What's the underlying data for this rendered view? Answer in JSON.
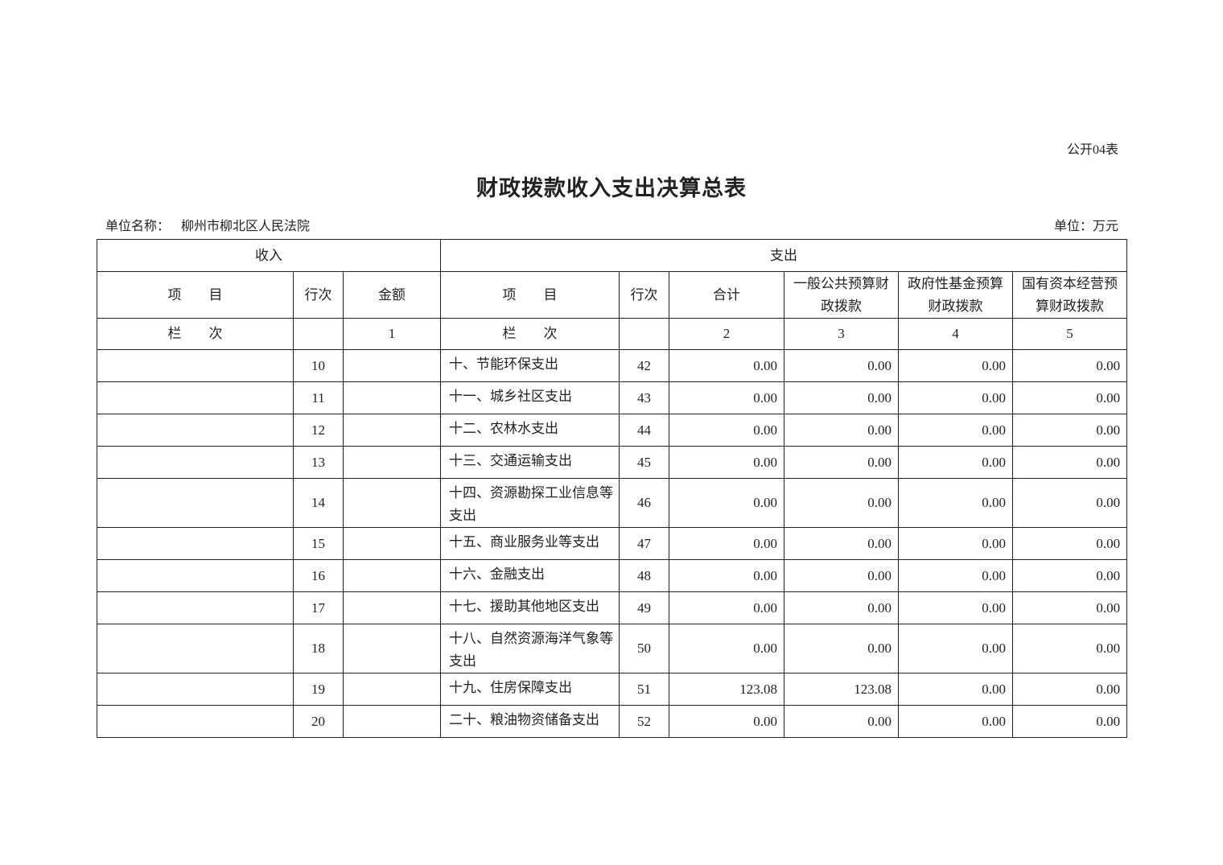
{
  "form_no": "公开04表",
  "title": "财政拨款收入支出决算总表",
  "unit_name_label": "单位名称：",
  "unit_name": "柳州市柳北区人民法院",
  "unit": "单位：万元",
  "header": {
    "income": "收入",
    "expense": "支出",
    "item": "项　　目",
    "row_no": "行次",
    "amount": "金额",
    "item2": "项　　目",
    "row_no2": "行次",
    "total": "合计",
    "general": "一般公共预算财政拨款",
    "gov_fund": "政府性基金预算财政拨款",
    "state_capital": "国有资本经营预算财政拨款",
    "col_label": "栏　　次",
    "col1": "1",
    "col_label2": "栏　　次",
    "col2": "2",
    "col3": "3",
    "col4": "4",
    "col5": "5"
  },
  "rows": [
    {
      "in_item": "",
      "in_no": "10",
      "in_amt": "",
      "item": "十、节能环保支出",
      "no": "42",
      "total": "0.00",
      "general": "0.00",
      "gov_fund": "0.00",
      "state_capital": "0.00"
    },
    {
      "in_item": "",
      "in_no": "11",
      "in_amt": "",
      "item": "十一、城乡社区支出",
      "no": "43",
      "total": "0.00",
      "general": "0.00",
      "gov_fund": "0.00",
      "state_capital": "0.00"
    },
    {
      "in_item": "",
      "in_no": "12",
      "in_amt": "",
      "item": "十二、农林水支出",
      "no": "44",
      "total": "0.00",
      "general": "0.00",
      "gov_fund": "0.00",
      "state_capital": "0.00"
    },
    {
      "in_item": "",
      "in_no": "13",
      "in_amt": "",
      "item": "十三、交通运输支出",
      "no": "45",
      "total": "0.00",
      "general": "0.00",
      "gov_fund": "0.00",
      "state_capital": "0.00"
    },
    {
      "in_item": "",
      "in_no": "14",
      "in_amt": "",
      "item": "十四、资源勘探工业信息等支出",
      "no": "46",
      "total": "0.00",
      "general": "0.00",
      "gov_fund": "0.00",
      "state_capital": "0.00"
    },
    {
      "in_item": "",
      "in_no": "15",
      "in_amt": "",
      "item": "十五、商业服务业等支出",
      "no": "47",
      "total": "0.00",
      "general": "0.00",
      "gov_fund": "0.00",
      "state_capital": "0.00"
    },
    {
      "in_item": "",
      "in_no": "16",
      "in_amt": "",
      "item": "十六、金融支出",
      "no": "48",
      "total": "0.00",
      "general": "0.00",
      "gov_fund": "0.00",
      "state_capital": "0.00"
    },
    {
      "in_item": "",
      "in_no": "17",
      "in_amt": "",
      "item": "十七、援助其他地区支出",
      "no": "49",
      "total": "0.00",
      "general": "0.00",
      "gov_fund": "0.00",
      "state_capital": "0.00"
    },
    {
      "in_item": "",
      "in_no": "18",
      "in_amt": "",
      "item": "十八、自然资源海洋气象等支出",
      "no": "50",
      "total": "0.00",
      "general": "0.00",
      "gov_fund": "0.00",
      "state_capital": "0.00"
    },
    {
      "in_item": "",
      "in_no": "19",
      "in_amt": "",
      "item": "十九、住房保障支出",
      "no": "51",
      "total": "123.08",
      "general": "123.08",
      "gov_fund": "0.00",
      "state_capital": "0.00"
    },
    {
      "in_item": "",
      "in_no": "20",
      "in_amt": "",
      "item": "二十、粮油物资储备支出",
      "no": "52",
      "total": "0.00",
      "general": "0.00",
      "gov_fund": "0.00",
      "state_capital": "0.00"
    }
  ]
}
